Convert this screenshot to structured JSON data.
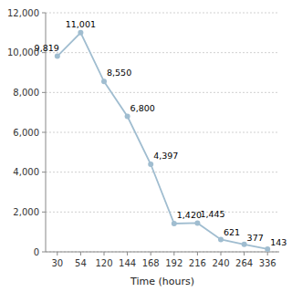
{
  "chart_data": {
    "type": "line",
    "xlabel": "Time (hours)",
    "categories": [
      "30",
      "54",
      "120",
      "144",
      "168",
      "192",
      "216",
      "240",
      "264",
      "336"
    ],
    "values": [
      9819,
      11001,
      8550,
      6800,
      4397,
      1420,
      1445,
      621,
      377,
      143
    ],
    "value_labels": [
      "9,819",
      "11,001",
      "8,550",
      "6,800",
      "4,397",
      "1,420",
      "1,445",
      "621",
      "377",
      "143"
    ],
    "data_labels": true,
    "color": "#a0bdd0",
    "marker": "circle",
    "ylim": [
      0,
      12000
    ],
    "yticks": [
      0,
      {
        "value": 2000,
        "label": "2,000"
      },
      {
        "value": 4000,
        "label": "4,000"
      },
      {
        "value": 6000,
        "label": "6,000"
      },
      {
        "value": 8000,
        "label": "8,000"
      },
      {
        "value": 10000,
        "label": "10,000"
      },
      {
        "value": 12000,
        "label": "12,000"
      }
    ],
    "grid": true
  }
}
